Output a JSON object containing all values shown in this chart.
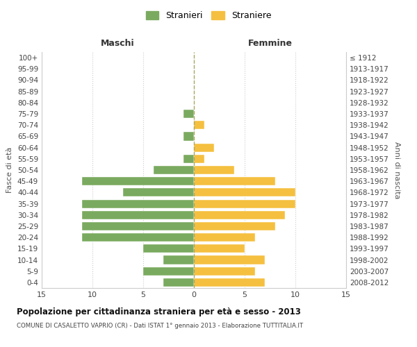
{
  "age_groups": [
    "100+",
    "95-99",
    "90-94",
    "85-89",
    "80-84",
    "75-79",
    "70-74",
    "65-69",
    "60-64",
    "55-59",
    "50-54",
    "45-49",
    "40-44",
    "35-39",
    "30-34",
    "25-29",
    "20-24",
    "15-19",
    "10-14",
    "5-9",
    "0-4"
  ],
  "birth_years": [
    "≤ 1912",
    "1913-1917",
    "1918-1922",
    "1923-1927",
    "1928-1932",
    "1933-1937",
    "1938-1942",
    "1943-1947",
    "1948-1952",
    "1953-1957",
    "1958-1962",
    "1963-1967",
    "1968-1972",
    "1973-1977",
    "1978-1982",
    "1983-1987",
    "1988-1992",
    "1993-1997",
    "1998-2002",
    "2003-2007",
    "2008-2012"
  ],
  "maschi": [
    0,
    0,
    0,
    0,
    0,
    1,
    0,
    1,
    0,
    1,
    4,
    11,
    7,
    11,
    11,
    11,
    11,
    5,
    3,
    5,
    3
  ],
  "femmine": [
    0,
    0,
    0,
    0,
    0,
    0,
    1,
    0,
    2,
    1,
    4,
    8,
    10,
    10,
    9,
    8,
    6,
    5,
    7,
    6,
    7
  ],
  "maschi_color": "#7aaa5f",
  "femmine_color": "#f5c040",
  "background_color": "#ffffff",
  "grid_color": "#cccccc",
  "center_line_color": "#aaa860",
  "title": "Popolazione per cittadinanza straniera per età e sesso - 2013",
  "subtitle": "COMUNE DI CASALETTO VAPRIO (CR) - Dati ISTAT 1° gennaio 2013 - Elaborazione TUTTITALIA.IT",
  "xlabel_left": "Maschi",
  "xlabel_right": "Femmine",
  "ylabel_left": "Fasce di età",
  "ylabel_right": "Anni di nascita",
  "legend_maschi": "Stranieri",
  "legend_femmine": "Straniere",
  "xlim": 15
}
